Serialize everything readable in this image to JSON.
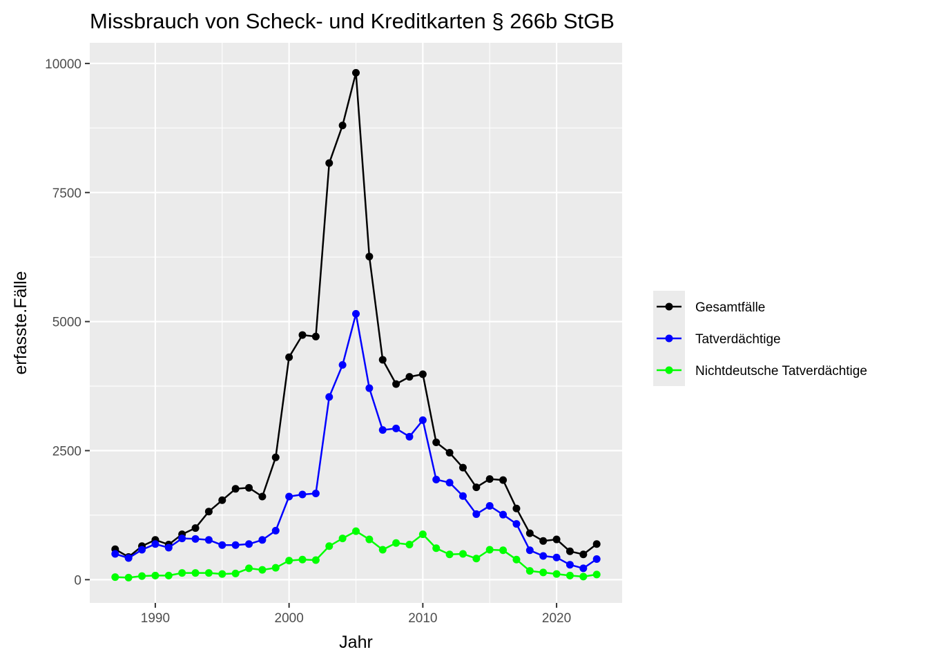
{
  "chart_data": {
    "type": "line",
    "title": "Missbrauch von Scheck- und Kreditkarten § 266b StGB",
    "xlabel": "Jahr",
    "ylabel": "erfasste.Fälle",
    "xlim": [
      1985.1,
      2024.9
    ],
    "ylim": [
      -450,
      10400
    ],
    "x_ticks": [
      1990,
      2000,
      2010,
      2020
    ],
    "y_ticks": [
      0,
      2500,
      5000,
      7500,
      10000
    ],
    "grid": true,
    "legend_position": "right",
    "x": [
      1987,
      1988,
      1989,
      1990,
      1991,
      1992,
      1993,
      1994,
      1995,
      1996,
      1997,
      1998,
      1999,
      2000,
      2001,
      2002,
      2003,
      2004,
      2005,
      2006,
      2007,
      2008,
      2009,
      2010,
      2011,
      2012,
      2013,
      2014,
      2015,
      2016,
      2017,
      2018,
      2019,
      2020,
      2021,
      2022,
      2023
    ],
    "series": [
      {
        "name": "Gesamtfälle",
        "color": "#000000",
        "values": [
          590,
          440,
          650,
          770,
          680,
          880,
          1000,
          1320,
          1540,
          1760,
          1780,
          1610,
          2370,
          4310,
          4740,
          4710,
          8070,
          8800,
          9820,
          6260,
          4260,
          3790,
          3930,
          3980,
          2660,
          2460,
          2170,
          1790,
          1950,
          1930,
          1380,
          900,
          750,
          780,
          550,
          490,
          690
        ]
      },
      {
        "name": "Tatverdächtige",
        "color": "#0000ff",
        "values": [
          500,
          420,
          580,
          690,
          620,
          800,
          790,
          770,
          670,
          670,
          690,
          770,
          950,
          1610,
          1650,
          1670,
          3540,
          4160,
          5150,
          3710,
          2900,
          2930,
          2770,
          3090,
          1940,
          1880,
          1620,
          1270,
          1430,
          1260,
          1080,
          570,
          460,
          430,
          290,
          220,
          400
        ]
      },
      {
        "name": "Nichtdeutsche Tatverdächtige",
        "color": "#00ff00",
        "values": [
          50,
          40,
          70,
          80,
          80,
          130,
          130,
          130,
          110,
          120,
          220,
          190,
          230,
          370,
          390,
          380,
          650,
          800,
          940,
          780,
          580,
          710,
          680,
          880,
          610,
          490,
          500,
          410,
          580,
          570,
          390,
          170,
          140,
          110,
          80,
          60,
          100
        ]
      }
    ]
  }
}
